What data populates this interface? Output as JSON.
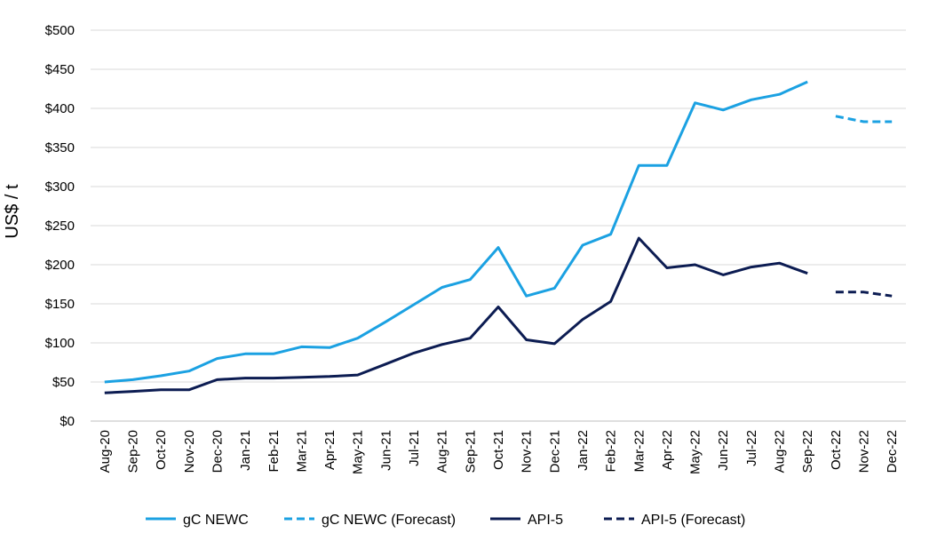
{
  "chart_data": {
    "type": "line",
    "title": "",
    "xlabel": "",
    "ylabel": "US$ / t",
    "ylim": [
      0,
      500
    ],
    "yticks": [
      0,
      50,
      100,
      150,
      200,
      250,
      300,
      350,
      400,
      450,
      500
    ],
    "ytick_labels": [
      "$0",
      "$50",
      "$100",
      "$150",
      "$200",
      "$250",
      "$300",
      "$350",
      "$400",
      "$450",
      "$500"
    ],
    "grid": true,
    "legend_position": "bottom",
    "categories": [
      "Aug-20",
      "Sep-20",
      "Oct-20",
      "Nov-20",
      "Dec-20",
      "Jan-21",
      "Feb-21",
      "Mar-21",
      "Apr-21",
      "May-21",
      "Jun-21",
      "Jul-21",
      "Aug-21",
      "Sep-21",
      "Oct-21",
      "Nov-21",
      "Dec-21",
      "Jan-22",
      "Feb-22",
      "Mar-22",
      "Apr-22",
      "May-22",
      "Jun-22",
      "Jul-22",
      "Aug-22",
      "Sep-22",
      "Oct-22",
      "Nov-22",
      "Dec-22"
    ],
    "series": [
      {
        "name": "gC NEWC",
        "color": "#1BA1E2",
        "dashed": false,
        "values": [
          50,
          53,
          58,
          64,
          80,
          86,
          86,
          95,
          94,
          106,
          127,
          149,
          171,
          181,
          222,
          160,
          170,
          225,
          239,
          327,
          327,
          407,
          398,
          411,
          418,
          434,
          null,
          null,
          null
        ]
      },
      {
        "name": "gC NEWC (Forecast)",
        "color": "#1BA1E2",
        "dashed": true,
        "values": [
          null,
          null,
          null,
          null,
          null,
          null,
          null,
          null,
          null,
          null,
          null,
          null,
          null,
          null,
          null,
          null,
          null,
          null,
          null,
          null,
          null,
          null,
          null,
          null,
          null,
          null,
          390,
          383,
          383
        ]
      },
      {
        "name": "API-5",
        "color": "#0C1C52",
        "dashed": false,
        "values": [
          36,
          38,
          40,
          40,
          53,
          55,
          55,
          56,
          57,
          59,
          73,
          87,
          98,
          106,
          146,
          104,
          99,
          130,
          153,
          234,
          196,
          200,
          187,
          197,
          202,
          189,
          null,
          null,
          null
        ]
      },
      {
        "name": "API-5 (Forecast)",
        "color": "#0C1C52",
        "dashed": true,
        "values": [
          null,
          null,
          null,
          null,
          null,
          null,
          null,
          null,
          null,
          null,
          null,
          null,
          null,
          null,
          null,
          null,
          null,
          null,
          null,
          null,
          null,
          null,
          null,
          null,
          null,
          null,
          165,
          165,
          160
        ]
      }
    ]
  }
}
